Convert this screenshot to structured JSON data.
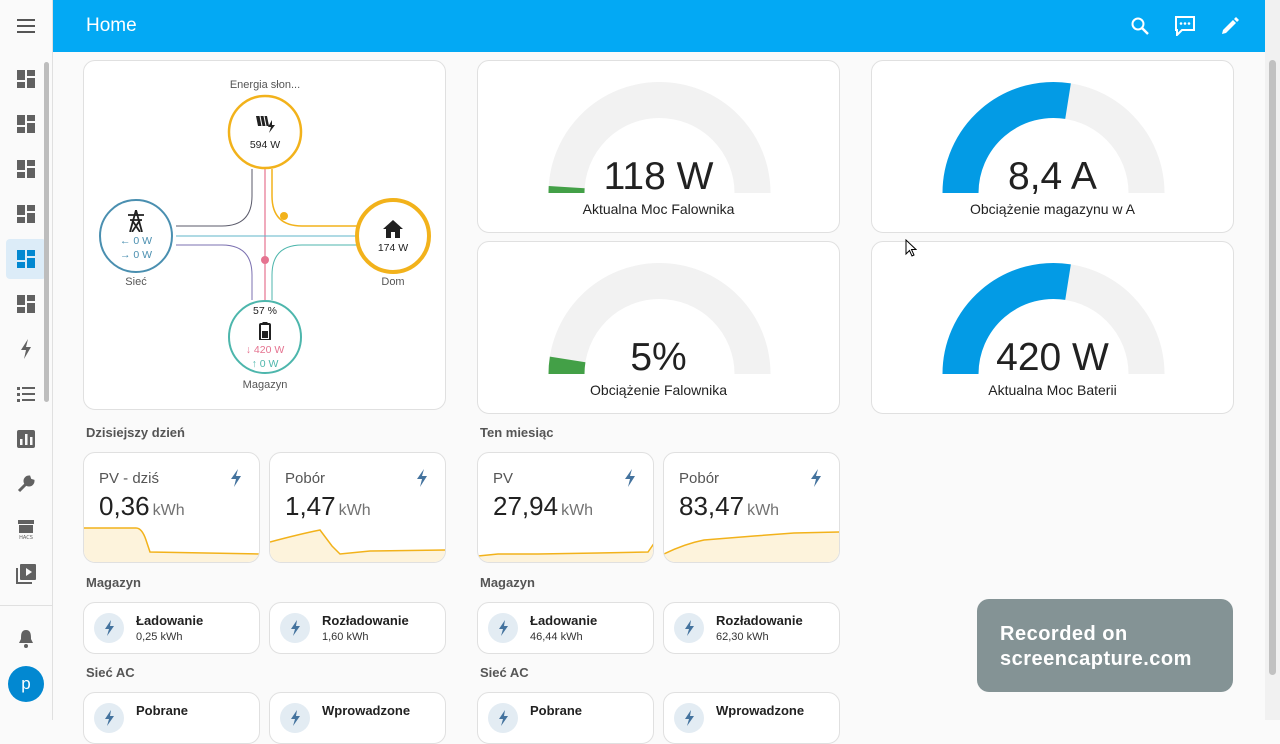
{
  "header": {
    "title": "Home"
  },
  "energy_flow": {
    "solar": {
      "label": "Energia słon...",
      "value": "594 W"
    },
    "grid": {
      "label": "Sieć",
      "in": "0 W",
      "out": "0 W"
    },
    "home": {
      "label": "Dom",
      "value": "174 W"
    },
    "battery": {
      "label": "Magazyn",
      "percent": "57 %",
      "out": "420 W",
      "in": "0 W"
    }
  },
  "gauges": [
    {
      "value": "118 W",
      "name": "Aktualna Moc Falownika",
      "level": 0.02,
      "color": "#43a047"
    },
    {
      "value": "8,4 A",
      "name": "Obciążenie magazynu w A",
      "level": 0.55,
      "color": "#039be5"
    },
    {
      "value": "5%",
      "name": "Obciążenie Falownika",
      "level": 0.05,
      "color": "#43a047"
    },
    {
      "value": "420 W",
      "name": "Aktualna Moc Baterii",
      "level": 0.55,
      "color": "#039be5"
    }
  ],
  "sections": {
    "today": "Dzisiejszy dzień",
    "month": "Ten miesiąc",
    "storage_left": "Magazyn",
    "storage_right": "Magazyn",
    "ac_left": "Sieć AC",
    "ac_right": "Sieć AC"
  },
  "stats": [
    {
      "label": "PV - dziś",
      "value": "0,36",
      "unit": "kWh"
    },
    {
      "label": "Pobór",
      "value": "1,47",
      "unit": "kWh"
    },
    {
      "label": "PV",
      "value": "27,94",
      "unit": "kWh"
    },
    {
      "label": "Pobór",
      "value": "83,47",
      "unit": "kWh"
    }
  ],
  "entities": [
    {
      "name": "Ładowanie",
      "state": "0,25 kWh"
    },
    {
      "name": "Rozładowanie",
      "state": "1,60 kWh"
    },
    {
      "name": "Ładowanie",
      "state": "46,44 kWh"
    },
    {
      "name": "Rozładowanie",
      "state": "62,30 kWh"
    },
    {
      "name": "Pobrane",
      "state": ""
    },
    {
      "name": "Wprowadzone",
      "state": ""
    },
    {
      "name": "Pobrane",
      "state": ""
    },
    {
      "name": "Wprowadzone",
      "state": ""
    }
  ],
  "watermark": {
    "line1": "Recorded on",
    "line2": "screencapture.com"
  },
  "user": {
    "initial": "p"
  },
  "colors": {
    "accent": "#03a9f4",
    "solar": "#f2b21b",
    "grid": "#4a8fb0",
    "battery": "#4db6ac",
    "battery_discharge": "#e57390"
  }
}
